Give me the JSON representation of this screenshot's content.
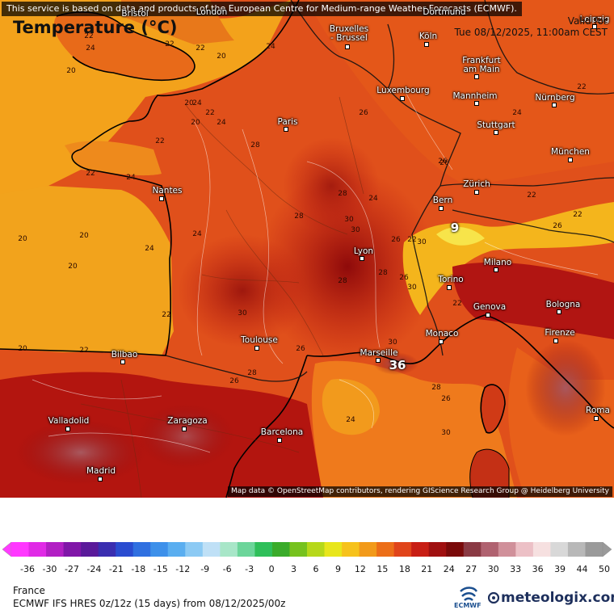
{
  "banner": "This service is based on data and products of the European Centre for Medium-range Weather Forecasts (ECMWF).",
  "attribution": "Map data © OpenStreetMap contributors, rendering GIScience Research Group @ Heidelberg University",
  "title": "Temperature (°C)",
  "valid_label": "Valid for",
  "valid_time": "Tue 08/12/2025, 11:00am CEST",
  "region": "France",
  "model": "ECMWF IFS HRES 0z/12z (15 days) from  08/12/2025/00z",
  "ecmwf_label": "ECMWF",
  "brand": "meteologix.com",
  "colors": {
    "map_base": "#e0501b",
    "sea_cool": "#f4a21c",
    "coast": "#000000"
  },
  "scale_ticks": [
    "-36",
    "-30",
    "-27",
    "-24",
    "-21",
    "-18",
    "-15",
    "-12",
    "-9",
    "-6",
    "-3",
    "0",
    "3",
    "6",
    "9",
    "12",
    "15",
    "18",
    "21",
    "24",
    "27",
    "30",
    "33",
    "36",
    "39",
    "44",
    "50"
  ],
  "cities": [
    {
      "name": "Bristol"
    },
    {
      "name": "London"
    },
    {
      "name": "Bruxelles\n- Brussel"
    },
    {
      "name": "Dortmund"
    },
    {
      "name": "Köln"
    },
    {
      "name": "Leipzig"
    },
    {
      "name": "Frankfurt\nam Main"
    },
    {
      "name": "Luxembourg"
    },
    {
      "name": "Mannheim"
    },
    {
      "name": "Nürnberg"
    },
    {
      "name": "Paris"
    },
    {
      "name": "Stuttgart"
    },
    {
      "name": "München"
    },
    {
      "name": "Nantes"
    },
    {
      "name": "Bern"
    },
    {
      "name": "Zürich"
    },
    {
      "name": "Lyon"
    },
    {
      "name": "Milano"
    },
    {
      "name": "Torino"
    },
    {
      "name": "Genova"
    },
    {
      "name": "Bologna"
    },
    {
      "name": "Toulouse"
    },
    {
      "name": "Bilbao"
    },
    {
      "name": "Marseille"
    },
    {
      "name": "Monaco"
    },
    {
      "name": "Firenze"
    },
    {
      "name": "Valladolid"
    },
    {
      "name": "Zaragoza"
    },
    {
      "name": "Barcelona"
    },
    {
      "name": "Roma"
    },
    {
      "name": "Madrid"
    }
  ],
  "peak_labels": [
    "9",
    "36"
  ],
  "isotherm_labels": [
    "22",
    "24",
    "20",
    "22",
    "22",
    "20",
    "24",
    "24",
    "22",
    "20",
    "24",
    "20",
    "26",
    "26",
    "22",
    "24",
    "22",
    "28",
    "28",
    "24",
    "26",
    "22",
    "20",
    "24",
    "28",
    "24",
    "26",
    "22",
    "20",
    "20",
    "22",
    "20",
    "22",
    "22",
    "26",
    "30",
    "28",
    "30",
    "30",
    "24",
    "26",
    "26",
    "28",
    "26",
    "30",
    "28",
    "30",
    "22",
    "30",
    "22",
    "24",
    "26",
    "28",
    "30"
  ]
}
